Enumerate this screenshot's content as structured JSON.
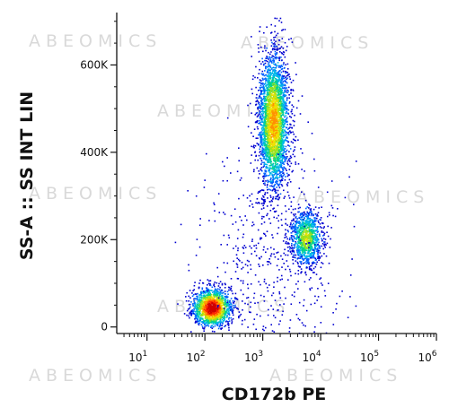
{
  "chart_data": {
    "type": "scatter",
    "style": "flow cytometry density dot plot",
    "x_scale": "log",
    "xlabel": "CD172b PE",
    "ylabel": "SS-A :: SS INT LIN",
    "xlim": [
      3,
      1000000
    ],
    "ylim": [
      -15000,
      720000
    ],
    "x_ticks": [
      {
        "base": "10",
        "exp": "1",
        "value": 10
      },
      {
        "base": "10",
        "exp": "2",
        "value": 100
      },
      {
        "base": "10",
        "exp": "3",
        "value": 1000
      },
      {
        "base": "10",
        "exp": "4",
        "value": 10000
      },
      {
        "base": "10",
        "exp": "5",
        "value": 100000
      },
      {
        "base": "10",
        "exp": "6",
        "value": 1000000
      }
    ],
    "y_ticks": [
      {
        "label": "0",
        "value": 0
      },
      {
        "label": "200K",
        "value": 200000
      },
      {
        "label": "400K",
        "value": 400000
      },
      {
        "label": "600K",
        "value": 600000
      }
    ],
    "density_colors": [
      "#0000d0",
      "#0060ff",
      "#00b8e8",
      "#00d28c",
      "#9be21e",
      "#f0e000",
      "#ff9000",
      "#ff2a00",
      "#d00000"
    ],
    "populations": [
      {
        "x_center": 130,
        "y_center": 45000,
        "x_spread_decades": 0.17,
        "y_spread": 22000,
        "count": 1500,
        "peak_density": 1.0
      },
      {
        "x_center": 1500,
        "y_center": 470000,
        "x_spread_decades": 0.13,
        "y_spread": 80000,
        "count": 3000,
        "peak_density": 0.72
      },
      {
        "x_center": 5500,
        "y_center": 205000,
        "x_spread_decades": 0.14,
        "y_spread": 33000,
        "count": 1000,
        "peak_density": 0.55
      },
      {
        "x_center": 1300,
        "y_center": 150000,
        "x_spread_decades": 0.6,
        "y_spread": 110000,
        "count": 450,
        "peak_density": 0.05
      }
    ],
    "watermark": "ABEOMICS"
  }
}
